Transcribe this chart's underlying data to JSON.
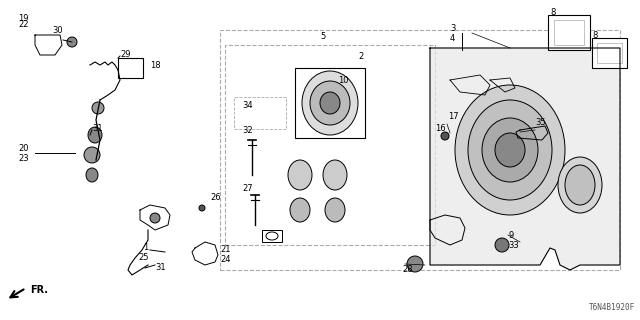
{
  "bg_color": "#ffffff",
  "line_color": "#000000",
  "light_line_color": "#aaaaaa",
  "diagram_code": "T6N4B1920F"
}
